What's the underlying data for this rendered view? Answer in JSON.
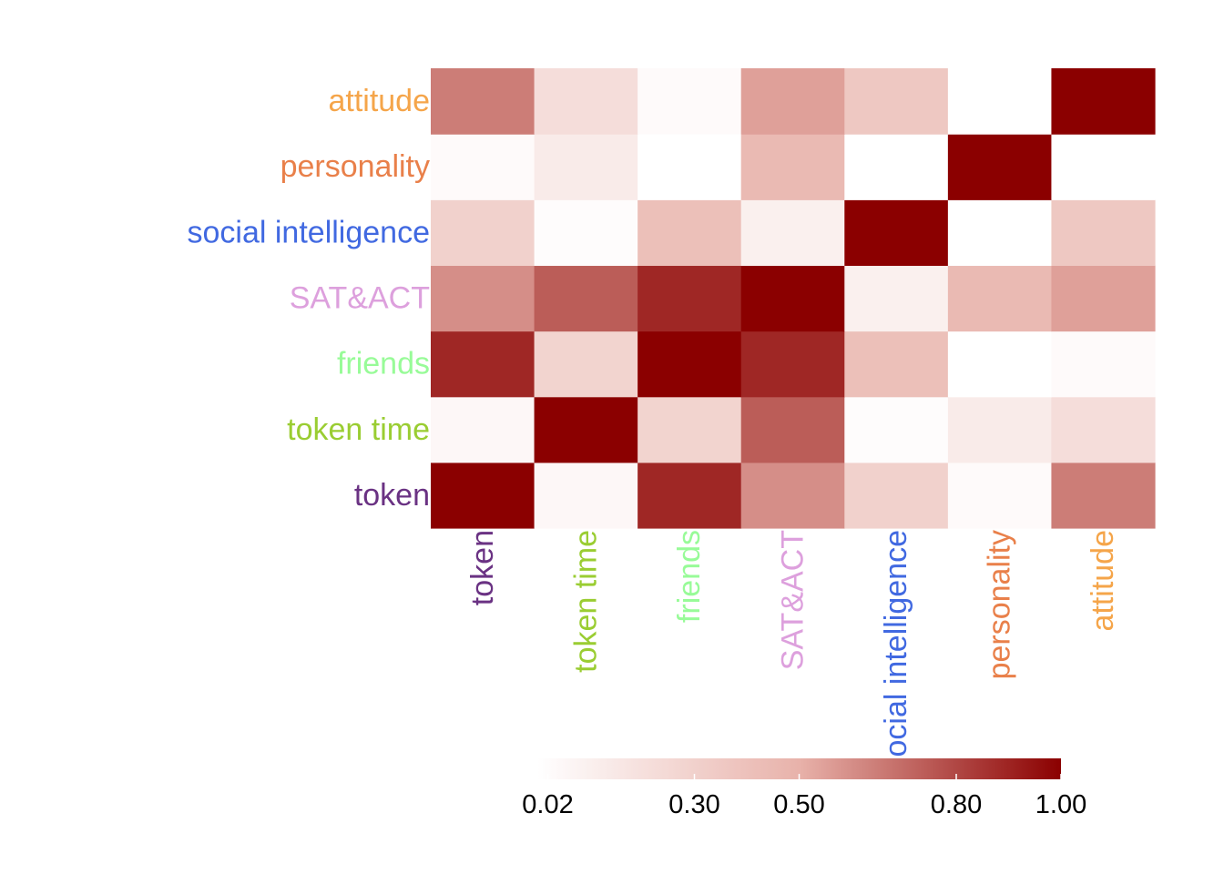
{
  "chart_data": {
    "type": "heatmap",
    "title": "",
    "xlabel": "",
    "ylabel": "",
    "x_categories": [
      "token",
      "token time",
      "friends",
      "SAT&ACT",
      "social intelligence",
      "personality",
      "attitude"
    ],
    "y_categories": [
      "token",
      "token time",
      "friends",
      "SAT&ACT",
      "social intelligence",
      "personality",
      "attitude"
    ],
    "category_colors": {
      "token": "#6A3283",
      "token time": "#9ACD32",
      "friends": "#98FB98",
      "SAT&ACT": "#DDA0DD",
      "social intelligence": "#4169E1",
      "personality": "#E9804A",
      "attitude": "#F5A54A"
    },
    "values": [
      [
        1.0,
        0.05,
        0.89,
        0.6,
        0.3,
        0.03,
        0.65
      ],
      [
        0.05,
        1.0,
        0.28,
        0.74,
        0.02,
        0.13,
        0.22
      ],
      [
        0.89,
        0.28,
        1.0,
        0.89,
        0.41,
        0.0,
        0.03
      ],
      [
        0.6,
        0.74,
        0.89,
        1.0,
        0.1,
        0.45,
        0.55
      ],
      [
        0.3,
        0.02,
        0.41,
        0.1,
        1.0,
        0.0,
        0.36
      ],
      [
        0.03,
        0.13,
        0.0,
        0.45,
        0.0,
        1.0,
        0.0
      ],
      [
        0.65,
        0.22,
        0.03,
        0.55,
        0.36,
        0.0,
        1.0
      ]
    ],
    "colorbar": {
      "ticks": [
        "0.02",
        "0.30",
        "0.50",
        "0.80",
        "1.00"
      ],
      "tick_values": [
        0.02,
        0.3,
        0.5,
        0.8,
        1.0
      ],
      "range": [
        0.0,
        1.0
      ],
      "colors": [
        "#FFFFFF",
        "#E8B2AA",
        "#8B0000"
      ],
      "placement": "bottom"
    },
    "grid": false
  }
}
